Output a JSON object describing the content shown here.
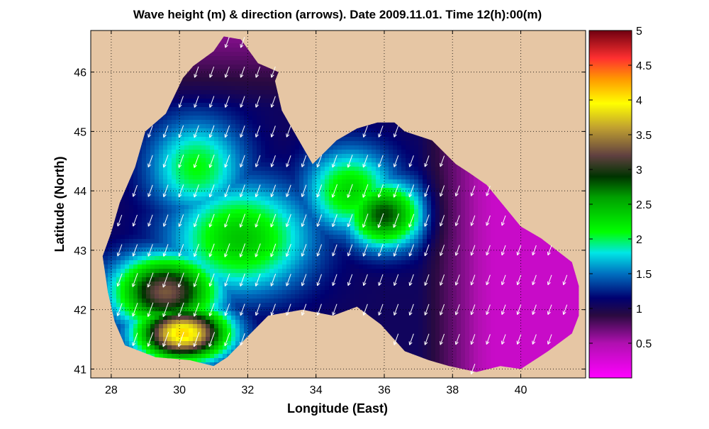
{
  "chart_data": {
    "type": "heatmap",
    "title": "Wave height (m) & direction (arrows). Date 2009.11.01. Time 12(h):00(m)",
    "xlabel": "Longitude (East)",
    "ylabel": "Latitude (North)",
    "xlim": [
      27.4,
      41.9
    ],
    "ylim": [
      40.85,
      46.7
    ],
    "xticks": [
      28,
      30,
      32,
      34,
      36,
      38,
      40
    ],
    "yticks": [
      41,
      42,
      43,
      44,
      45,
      46
    ],
    "grid": true,
    "land_color": "#e6c6a4",
    "colorbar": {
      "range": [
        0,
        5
      ],
      "ticks": [
        0.5,
        1,
        1.5,
        2,
        2.5,
        3,
        3.5,
        4,
        4.5,
        5
      ],
      "tick_labels": [
        "0.5",
        "1",
        "1.5",
        "2",
        "2.5",
        "3",
        "3.5",
        "4",
        "4.5",
        "5"
      ],
      "stops": [
        {
          "v": 0.0,
          "c": "#ff00ff"
        },
        {
          "v": 0.5,
          "c": "#b010b0"
        },
        {
          "v": 0.9,
          "c": "#2a0a40"
        },
        {
          "v": 1.15,
          "c": "#000070"
        },
        {
          "v": 1.5,
          "c": "#0070c0"
        },
        {
          "v": 1.8,
          "c": "#00e6e6"
        },
        {
          "v": 2.1,
          "c": "#00ff00"
        },
        {
          "v": 2.6,
          "c": "#00a000"
        },
        {
          "v": 2.9,
          "c": "#003300"
        },
        {
          "v": 3.2,
          "c": "#604040"
        },
        {
          "v": 3.6,
          "c": "#c0a030"
        },
        {
          "v": 3.95,
          "c": "#ffff00"
        },
        {
          "v": 4.3,
          "c": "#ff9900"
        },
        {
          "v": 4.6,
          "c": "#ff3030"
        },
        {
          "v": 5.0,
          "c": "#700010"
        }
      ]
    },
    "sea_outline": [
      [
        31.0,
        41.05
      ],
      [
        30.3,
        41.15
      ],
      [
        29.3,
        41.2
      ],
      [
        28.4,
        41.4
      ],
      [
        28.1,
        41.8
      ],
      [
        27.9,
        42.3
      ],
      [
        27.75,
        42.9
      ],
      [
        28.0,
        43.3
      ],
      [
        28.25,
        43.8
      ],
      [
        28.7,
        44.4
      ],
      [
        29.0,
        45.0
      ],
      [
        29.6,
        45.3
      ],
      [
        30.1,
        45.9
      ],
      [
        30.4,
        46.1
      ],
      [
        31.0,
        46.35
      ],
      [
        31.3,
        46.6
      ],
      [
        31.8,
        46.55
      ],
      [
        32.3,
        46.15
      ],
      [
        32.9,
        46.0
      ],
      [
        32.8,
        45.85
      ],
      [
        33.0,
        45.35
      ],
      [
        33.5,
        44.85
      ],
      [
        33.9,
        44.45
      ],
      [
        34.6,
        44.85
      ],
      [
        35.2,
        45.05
      ],
      [
        35.8,
        45.15
      ],
      [
        36.3,
        45.15
      ],
      [
        36.6,
        45.0
      ],
      [
        37.4,
        44.85
      ],
      [
        38.1,
        44.45
      ],
      [
        38.5,
        44.3
      ],
      [
        39.0,
        44.1
      ],
      [
        39.5,
        43.75
      ],
      [
        40.0,
        43.4
      ],
      [
        40.6,
        43.2
      ],
      [
        41.5,
        42.8
      ],
      [
        41.7,
        42.4
      ],
      [
        41.7,
        41.9
      ],
      [
        41.5,
        41.6
      ],
      [
        40.8,
        41.3
      ],
      [
        40.0,
        41.0
      ],
      [
        39.4,
        41.05
      ],
      [
        38.7,
        40.95
      ],
      [
        37.9,
        41.05
      ],
      [
        37.3,
        41.15
      ],
      [
        36.6,
        41.3
      ],
      [
        35.9,
        41.75
      ],
      [
        35.2,
        42.05
      ],
      [
        34.5,
        41.9
      ],
      [
        33.6,
        42.0
      ],
      [
        32.6,
        41.9
      ],
      [
        32.0,
        41.55
      ],
      [
        31.4,
        41.2
      ]
    ],
    "wave_hotspots": [
      {
        "lon": 30.1,
        "lat": 41.6,
        "h": 4.1,
        "sx": 1.3,
        "sy": 0.45
      },
      {
        "lon": 29.6,
        "lat": 42.3,
        "h": 3.3,
        "sx": 1.5,
        "sy": 0.6
      },
      {
        "lon": 36.0,
        "lat": 43.6,
        "h": 2.85,
        "sx": 1.1,
        "sy": 0.55
      },
      {
        "lon": 31.8,
        "lat": 43.2,
        "h": 2.4,
        "sx": 2.0,
        "sy": 0.9
      },
      {
        "lon": 35.0,
        "lat": 44.0,
        "h": 2.3,
        "sx": 1.3,
        "sy": 0.7
      },
      {
        "lon": 30.5,
        "lat": 44.4,
        "h": 2.1,
        "sx": 1.4,
        "sy": 0.8
      }
    ],
    "wave_background": 1.05,
    "wave_east_decay": {
      "start_lon": 37.0,
      "end_lon": 39.2,
      "min_h": 0.35
    },
    "wind_direction_deg": 250,
    "arrow_spacing": {
      "lon": 0.45,
      "lat": 0.5
    }
  }
}
